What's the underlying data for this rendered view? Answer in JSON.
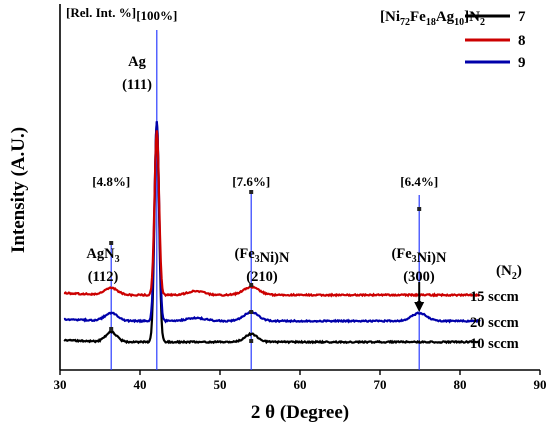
{
  "chart_data": {
    "type": "line",
    "xlabel": "2 θ (Degree)",
    "ylabel": "Intensity (A.U.)",
    "xlim": [
      30,
      90
    ],
    "xticks": [
      30,
      40,
      50,
      60,
      70,
      80,
      90
    ],
    "rel_int_label": "[Rel. Int. %]",
    "legend_title": "[Ni72Fe18Ag10]N2",
    "legend": [
      {
        "label": "7",
        "color": "#000000"
      },
      {
        "label": "8",
        "color": "#cc0000"
      },
      {
        "label": "9",
        "color": "#0000aa"
      }
    ],
    "condition_header": "(N2)",
    "series": [
      {
        "name": "7",
        "color": "#000000",
        "condition": "10 sccm"
      },
      {
        "name": "9",
        "color": "#0000aa",
        "condition": "20 sccm"
      },
      {
        "name": "8",
        "color": "#cc0000",
        "condition": "15 sccm"
      }
    ],
    "peaks": [
      {
        "x": 36.4,
        "phase": "AgN3",
        "hkl": "(112)",
        "rel_int": "[4.8%]"
      },
      {
        "x": 42.1,
        "phase": "Ag",
        "hkl": "(111)",
        "rel_int": "[100%]"
      },
      {
        "x": 53.9,
        "phase": "(Fe3Ni)N",
        "hkl": "(210)",
        "rel_int": "[7.6%]"
      },
      {
        "x": 74.9,
        "phase": "(Fe3Ni)N",
        "hkl": "(300)",
        "rel_int": "[6.4%]"
      }
    ]
  }
}
